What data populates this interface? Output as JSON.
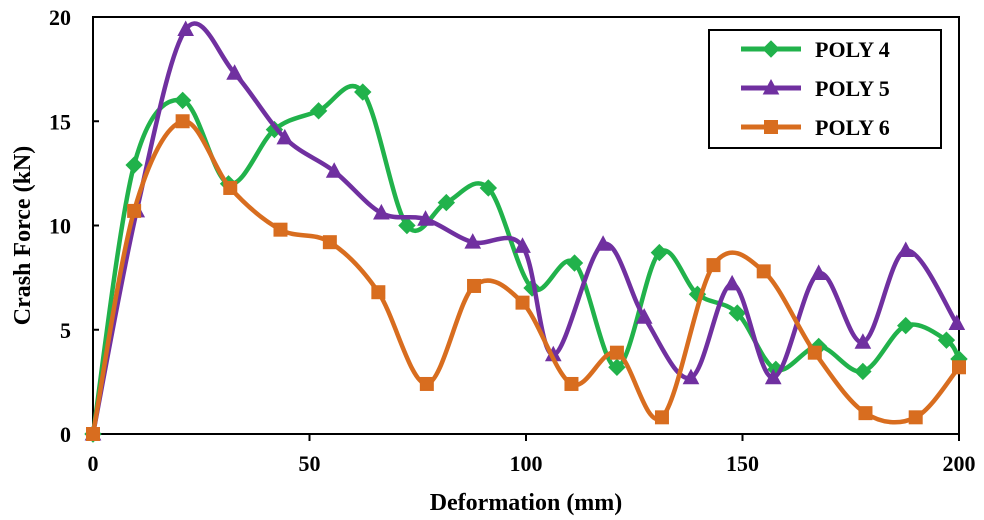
{
  "chart_data": {
    "type": "line",
    "title": "",
    "xlabel": "Deformation (mm)",
    "ylabel": "Crash Force (kN)",
    "xlim": [
      0,
      200
    ],
    "ylim": [
      0,
      20
    ],
    "x_ticks": [
      0,
      50,
      100,
      150,
      200
    ],
    "y_ticks": [
      0,
      5,
      10,
      15,
      20
    ],
    "grid": false,
    "legend_position": "top-right",
    "series": [
      {
        "name": "POLY 4",
        "color": "#21b24b",
        "marker": "diamond",
        "points": [
          [
            0,
            0
          ],
          [
            9.5,
            12.9
          ],
          [
            20.7,
            16.0
          ],
          [
            31.3,
            12.0
          ],
          [
            41.9,
            14.6
          ],
          [
            52.1,
            15.5
          ],
          [
            62.3,
            16.4
          ],
          [
            72.5,
            10.0
          ],
          [
            81.6,
            11.1
          ],
          [
            91.3,
            11.8
          ],
          [
            101.4,
            7.0
          ],
          [
            111.2,
            8.2
          ],
          [
            121.0,
            3.2
          ],
          [
            130.8,
            8.7
          ],
          [
            139.6,
            6.7
          ],
          [
            148.8,
            5.8
          ],
          [
            157.7,
            3.1
          ],
          [
            167.6,
            4.2
          ],
          [
            177.8,
            3.0
          ],
          [
            187.7,
            5.2
          ],
          [
            197.1,
            4.5
          ],
          [
            200,
            3.6
          ]
        ]
      },
      {
        "name": "POLY 5",
        "color": "#7030a0",
        "marker": "triangle",
        "points": [
          [
            0,
            0
          ],
          [
            10.1,
            10.7
          ],
          [
            21.4,
            19.4
          ],
          [
            32.7,
            17.3
          ],
          [
            44.3,
            14.2
          ],
          [
            55.7,
            12.6
          ],
          [
            66.6,
            10.6
          ],
          [
            76.8,
            10.3
          ],
          [
            87.7,
            9.2
          ],
          [
            99.2,
            9.0
          ],
          [
            106.3,
            3.8
          ],
          [
            117.8,
            9.1
          ],
          [
            127.3,
            5.6
          ],
          [
            138.1,
            2.7
          ],
          [
            147.6,
            7.2
          ],
          [
            157.1,
            2.7
          ],
          [
            167.6,
            7.7
          ],
          [
            177.8,
            4.4
          ],
          [
            187.7,
            8.8
          ],
          [
            199.5,
            5.3
          ]
        ]
      },
      {
        "name": "POLY 6",
        "color": "#d86d1f",
        "marker": "square",
        "points": [
          [
            0,
            0
          ],
          [
            9.5,
            10.7
          ],
          [
            20.7,
            15.0
          ],
          [
            31.7,
            11.8
          ],
          [
            43.3,
            9.8
          ],
          [
            54.7,
            9.2
          ],
          [
            65.9,
            6.8
          ],
          [
            77.1,
            2.4
          ],
          [
            88.0,
            7.1
          ],
          [
            99.2,
            6.3
          ],
          [
            110.5,
            2.4
          ],
          [
            121.0,
            3.9
          ],
          [
            131.4,
            0.8
          ],
          [
            143.3,
            8.1
          ],
          [
            154.9,
            7.8
          ],
          [
            166.7,
            3.9
          ],
          [
            178.4,
            1.0
          ],
          [
            190.0,
            0.8
          ],
          [
            200,
            3.2
          ]
        ]
      }
    ]
  }
}
